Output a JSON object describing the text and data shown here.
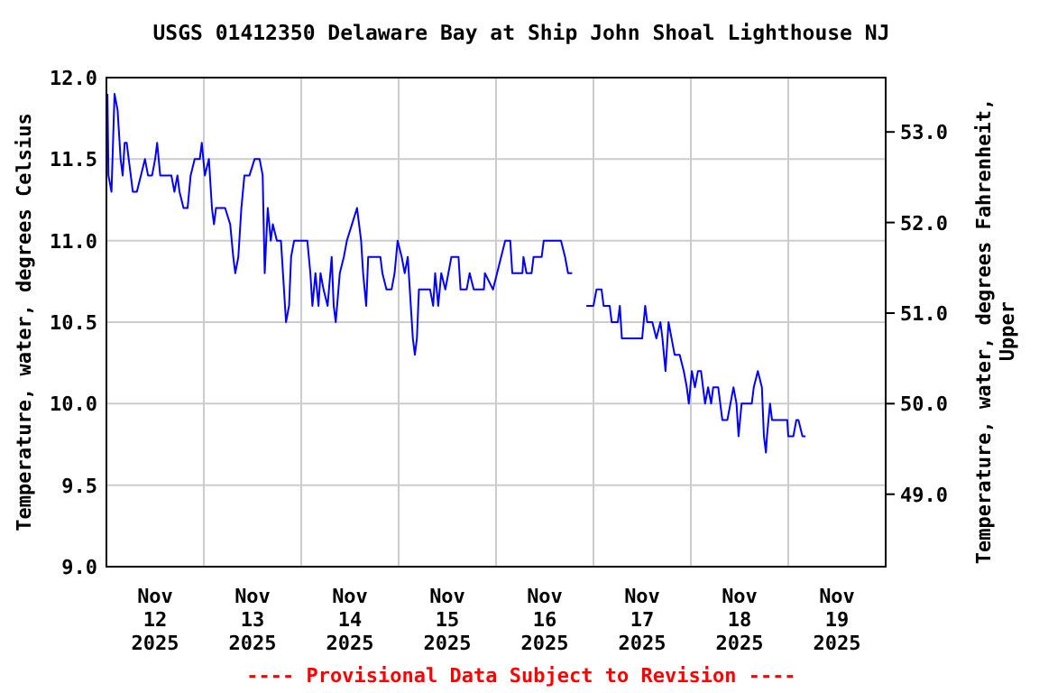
{
  "chart_data": {
    "type": "line",
    "title": "USGS 01412350 Delaware Bay at Ship John Shoal Lighthouse NJ",
    "ylabel": "Temperature, water, degrees Celsius",
    "y2label": "Temperature, water, degrees Fahrenheit, Upper",
    "annotations": [
      "---- Provisional Data Subject to Revision ----"
    ],
    "xlim": [
      "2025-11-12T00:00",
      "2025-11-20T00:00"
    ],
    "xticks": [
      {
        "value": "2025-11-12T00:00",
        "label": null
      },
      {
        "value": "2025-11-12T12:00",
        "label": "Nov 12 2025"
      },
      {
        "value": "2025-11-13T00:00",
        "label": null
      },
      {
        "value": "2025-11-13T12:00",
        "label": "Nov 13 2025"
      },
      {
        "value": "2025-11-14T00:00",
        "label": null
      },
      {
        "value": "2025-11-14T12:00",
        "label": "Nov 14 2025"
      },
      {
        "value": "2025-11-15T00:00",
        "label": null
      },
      {
        "value": "2025-11-15T12:00",
        "label": "Nov 15 2025"
      },
      {
        "value": "2025-11-16T00:00",
        "label": null
      },
      {
        "value": "2025-11-16T12:00",
        "label": "Nov 16 2025"
      },
      {
        "value": "2025-11-17T00:00",
        "label": null
      },
      {
        "value": "2025-11-17T12:00",
        "label": "Nov 17 2025"
      },
      {
        "value": "2025-11-18T00:00",
        "label": null
      },
      {
        "value": "2025-11-18T12:00",
        "label": "Nov 18 2025"
      },
      {
        "value": "2025-11-19T00:00",
        "label": null
      },
      {
        "value": "2025-11-19T12:00",
        "label": "Nov 19 2025"
      },
      {
        "value": "2025-11-20T00:00",
        "label": null
      }
    ],
    "ylim": [
      9,
      12
    ],
    "yticks": [
      {
        "value": 9,
        "label": "9.0"
      },
      {
        "value": 9.5,
        "label": "9.5"
      },
      {
        "value": 10,
        "label": "10.0"
      },
      {
        "value": 10.5,
        "label": "10.5"
      },
      {
        "value": 11,
        "label": "11.0"
      },
      {
        "value": 11.5,
        "label": "11.5"
      },
      {
        "value": 12,
        "label": "12.0"
      }
    ],
    "y2lim": [
      48.2,
      53.6
    ],
    "y2ticks": [
      {
        "value": 49,
        "label": "49.0"
      },
      {
        "value": 50,
        "label": "50.0"
      },
      {
        "value": 51,
        "label": "51.0"
      },
      {
        "value": 52,
        "label": "52.0"
      },
      {
        "value": 53,
        "label": "53.0"
      }
    ],
    "grid": true,
    "series": [
      {
        "color": "#0000ff",
        "x": [
          "2025-11-12T00:15",
          "2025-11-12T00:30",
          "2025-11-12T01:15",
          "2025-11-12T02:00",
          "2025-11-12T02:45",
          "2025-11-12T03:30",
          "2025-11-12T04:00",
          "2025-11-12T04:30",
          "2025-11-12T05:00",
          "2025-11-12T06:00",
          "2025-11-12T06:30",
          "2025-11-12T07:30",
          "2025-11-12T08:30",
          "2025-11-12T09:30",
          "2025-11-12T10:15",
          "2025-11-12T11:15",
          "2025-11-12T12:00",
          "2025-11-12T12:30",
          "2025-11-12T13:15",
          "2025-11-12T16:00",
          "2025-11-12T16:45",
          "2025-11-12T17:30",
          "2025-11-12T18:00",
          "2025-11-12T19:00",
          "2025-11-12T20:00",
          "2025-11-12T20:45",
          "2025-11-12T21:45",
          "2025-11-12T23:00",
          "2025-11-12T23:30",
          "2025-11-13T00:15",
          "2025-11-13T01:15",
          "2025-11-13T02:00",
          "2025-11-13T02:30",
          "2025-11-13T03:00",
          "2025-11-13T05:15",
          "2025-11-13T06:30",
          "2025-11-13T07:15",
          "2025-11-13T07:45",
          "2025-11-13T08:30",
          "2025-11-13T09:15",
          "2025-11-13T10:00",
          "2025-11-13T11:15",
          "2025-11-13T12:30",
          "2025-11-13T13:45",
          "2025-11-13T14:30",
          "2025-11-13T15:00",
          "2025-11-13T15:45",
          "2025-11-13T16:30",
          "2025-11-13T17:00",
          "2025-11-13T18:00",
          "2025-11-13T19:00",
          "2025-11-13T20:00",
          "2025-11-13T20:15",
          "2025-11-13T21:00",
          "2025-11-13T21:30",
          "2025-11-13T22:15",
          "2025-11-14T01:30",
          "2025-11-14T02:15",
          "2025-11-14T02:45",
          "2025-11-14T03:30",
          "2025-11-14T04:15",
          "2025-11-14T04:45",
          "2025-11-14T05:30",
          "2025-11-14T06:30",
          "2025-11-14T07:30",
          "2025-11-14T08:00",
          "2025-11-14T08:30",
          "2025-11-14T09:30",
          "2025-11-14T10:30",
          "2025-11-14T11:15",
          "2025-11-14T12:30",
          "2025-11-14T13:45",
          "2025-11-14T14:45",
          "2025-11-14T15:15",
          "2025-11-14T16:00",
          "2025-11-14T16:30",
          "2025-11-14T19:30",
          "2025-11-14T20:00",
          "2025-11-14T21:00",
          "2025-11-14T22:15",
          "2025-11-14T23:00",
          "2025-11-14T23:45",
          "2025-11-15T00:45",
          "2025-11-15T01:30",
          "2025-11-15T02:15",
          "2025-11-15T02:45",
          "2025-11-15T03:30",
          "2025-11-15T04:00",
          "2025-11-15T04:30",
          "2025-11-15T05:00",
          "2025-11-15T07:45",
          "2025-11-15T08:30",
          "2025-11-15T09:00",
          "2025-11-15T09:45",
          "2025-11-15T10:30",
          "2025-11-15T11:30",
          "2025-11-15T13:00",
          "2025-11-15T14:45",
          "2025-11-15T15:15",
          "2025-11-15T16:45",
          "2025-11-15T17:30",
          "2025-11-15T18:30",
          "2025-11-15T21:00",
          "2025-11-15T21:15",
          "2025-11-15T23:15",
          "2025-11-16T00:15",
          "2025-11-16T01:15",
          "2025-11-16T02:15",
          "2025-11-16T03:30",
          "2025-11-16T04:00",
          "2025-11-16T06:30",
          "2025-11-16T06:45",
          "2025-11-16T07:30",
          "2025-11-16T08:45",
          "2025-11-16T09:15",
          "2025-11-16T11:15",
          "2025-11-16T11:45",
          "2025-11-16T16:00",
          "2025-11-16T17:00",
          "2025-11-16T17:45",
          "2025-11-16T18:45",
          "2025-11-16T20:00",
          "2025-11-16T22:15",
          "2025-11-17T00:00",
          "2025-11-17T00:45",
          "2025-11-17T02:00",
          "2025-11-17T02:30",
          "2025-11-17T04:00",
          "2025-11-17T04:30",
          "2025-11-17T06:00",
          "2025-11-17T06:30",
          "2025-11-17T07:00",
          "2025-11-17T12:00",
          "2025-11-17T12:45",
          "2025-11-17T13:15",
          "2025-11-17T14:30",
          "2025-11-17T15:30",
          "2025-11-17T16:30",
          "2025-11-17T17:00",
          "2025-11-17T17:45",
          "2025-11-17T18:30",
          "2025-11-17T19:15",
          "2025-11-17T20:00",
          "2025-11-17T21:15",
          "2025-11-17T22:15",
          "2025-11-17T23:00",
          "2025-11-17T23:30",
          "2025-11-18T00:15",
          "2025-11-18T01:00",
          "2025-11-18T01:45",
          "2025-11-18T02:30",
          "2025-11-18T03:30",
          "2025-11-18T04:15",
          "2025-11-18T05:00",
          "2025-11-18T05:30",
          "2025-11-18T06:45",
          "2025-11-18T07:45",
          "2025-11-18T09:00",
          "2025-11-18T10:30",
          "2025-11-18T11:15",
          "2025-11-18T11:45",
          "2025-11-18T12:30",
          "2025-11-18T15:00",
          "2025-11-18T15:30",
          "2025-11-18T16:30",
          "2025-11-18T17:30",
          "2025-11-18T18:00",
          "2025-11-18T18:30",
          "2025-11-18T18:45",
          "2025-11-18T19:30",
          "2025-11-18T20:00",
          "2025-11-18T23:45",
          "2025-11-19T00:00",
          "2025-11-19T01:15",
          "2025-11-19T02:00",
          "2025-11-19T02:30",
          "2025-11-19T03:30",
          "2025-11-19T04:15"
        ],
        "values": [
          11.9,
          11.4,
          11.3,
          11.9,
          11.8,
          11.5,
          11.4,
          11.6,
          11.6,
          11.4,
          11.3,
          11.3,
          11.4,
          11.5,
          11.4,
          11.4,
          11.5,
          11.6,
          11.4,
          11.4,
          11.3,
          11.4,
          11.3,
          11.2,
          11.2,
          11.4,
          11.5,
          11.5,
          11.6,
          11.4,
          11.5,
          11.2,
          11.1,
          11.2,
          11.2,
          11.1,
          10.9,
          10.8,
          10.9,
          11.2,
          11.4,
          11.4,
          11.5,
          11.5,
          11.4,
          10.8,
          11.2,
          11.0,
          11.1,
          11.0,
          11.0,
          10.6,
          10.5,
          10.6,
          10.9,
          11.0,
          11.0,
          10.8,
          10.6,
          10.8,
          10.6,
          10.8,
          10.7,
          10.6,
          10.9,
          10.6,
          10.5,
          10.8,
          10.9,
          11.0,
          11.1,
          11.2,
          11.0,
          10.8,
          10.6,
          10.9,
          10.9,
          10.8,
          10.7,
          10.7,
          10.8,
          11.0,
          10.9,
          10.8,
          10.9,
          10.7,
          10.4,
          10.3,
          10.4,
          10.7,
          10.7,
          10.6,
          10.8,
          10.6,
          10.8,
          10.7,
          10.9,
          10.9,
          10.7,
          10.7,
          10.8,
          10.7,
          10.7,
          10.8,
          10.7,
          10.8,
          10.9,
          11.0,
          11.0,
          10.8,
          10.8,
          10.9,
          10.8,
          10.8,
          10.9,
          10.9,
          11.0,
          11.0,
          10.9,
          10.8,
          10.8,
          null,
          10.6,
          10.6,
          10.7,
          10.7,
          10.6,
          10.6,
          10.5,
          10.5,
          10.6,
          10.4,
          10.4,
          10.6,
          10.5,
          10.5,
          10.4,
          10.5,
          10.4,
          10.2,
          10.5,
          10.4,
          10.3,
          10.3,
          10.2,
          10.1,
          10.0,
          10.2,
          10.1,
          10.2,
          10.2,
          10.0,
          10.1,
          10.0,
          10.1,
          10.1,
          9.9,
          9.9,
          10.1,
          10.0,
          9.8,
          10.0,
          10.0,
          10.1,
          10.2,
          10.1,
          9.8,
          9.7,
          9.8,
          10.0,
          9.9,
          9.9,
          9.8,
          9.8,
          9.9,
          9.9,
          9.8,
          9.8
        ]
      }
    ]
  }
}
